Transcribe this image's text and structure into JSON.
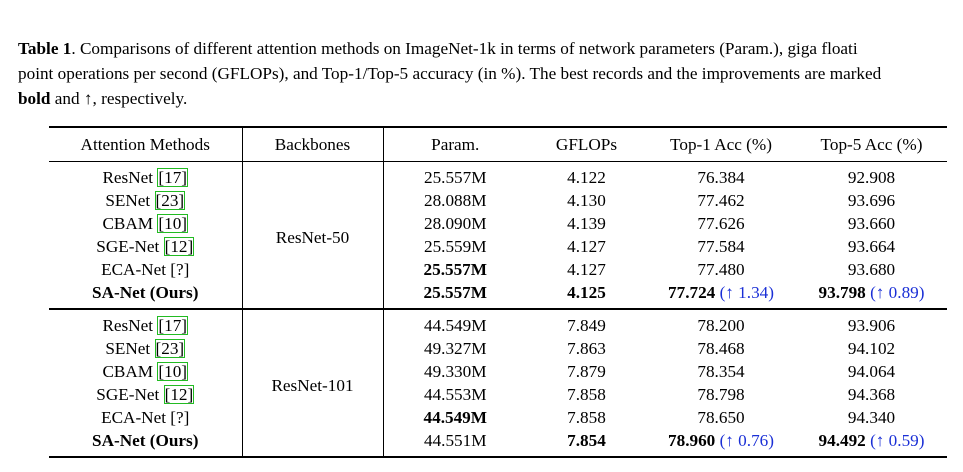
{
  "caption": {
    "label": "Table 1",
    "line1": ". Comparisons of different attention methods on ImageNet-1k in terms of network parameters (Param.), giga floati",
    "line2": "point operations per second (GFLOPs), and Top-1/Top-5 accuracy (in %). The best records and the improvements are marked",
    "line3_bold": "bold",
    "line3_rest": " and ↑, respectively."
  },
  "table": {
    "headers": [
      "Attention Methods",
      "Backbones",
      "Param.",
      "GFLOPs",
      "Top-1 Acc (%)",
      "Top-5 Acc (%)"
    ],
    "groups": [
      {
        "backbone": "ResNet-50",
        "rows": [
          {
            "method": "ResNet",
            "ref": "17",
            "param": "25.557M",
            "gflops": "4.122",
            "top1": "76.384",
            "top5": "92.908"
          },
          {
            "method": "SENet",
            "ref": "23",
            "param": "28.088M",
            "gflops": "4.130",
            "top1": "77.462",
            "top5": "93.696"
          },
          {
            "method": "CBAM",
            "ref": "10",
            "param": "28.090M",
            "gflops": "4.139",
            "top1": "77.626",
            "top5": "93.660"
          },
          {
            "method": "SGE-Net",
            "ref": "12",
            "param": "25.559M",
            "gflops": "4.127",
            "top1": "77.584",
            "top5": "93.664"
          },
          {
            "method": "ECA-Net",
            "ref": "?",
            "param": "25.557M",
            "gflops": "4.127",
            "top1": "77.480",
            "top5": "93.680"
          },
          {
            "method": "SA-Net (Ours)",
            "param": "25.557M",
            "gflops": "4.125",
            "top1": "77.724",
            "top1_imp": "(↑ 1.34)",
            "top5": "93.798",
            "top5_imp": "(↑ 0.89)"
          }
        ]
      },
      {
        "backbone": "ResNet-101",
        "rows": [
          {
            "method": "ResNet",
            "ref": "17",
            "param": "44.549M",
            "gflops": "7.849",
            "top1": "78.200",
            "top5": "93.906"
          },
          {
            "method": "SENet",
            "ref": "23",
            "param": "49.327M",
            "gflops": "7.863",
            "top1": "78.468",
            "top5": "94.102"
          },
          {
            "method": "CBAM",
            "ref": "10",
            "param": "49.330M",
            "gflops": "7.879",
            "top1": "78.354",
            "top5": "94.064"
          },
          {
            "method": "SGE-Net",
            "ref": "12",
            "param": "44.553M",
            "gflops": "7.858",
            "top1": "78.798",
            "top5": "94.368"
          },
          {
            "method": "ECA-Net",
            "ref": "?",
            "param": "44.549M",
            "gflops": "7.858",
            "top1": "78.650",
            "top5": "94.340"
          },
          {
            "method": "SA-Net (Ours)",
            "param": "44.551M",
            "gflops": "7.854",
            "top1": "78.960",
            "top1_imp": "(↑ 0.76)",
            "top5": "94.492",
            "top5_imp": "(↑ 0.59)"
          }
        ]
      }
    ]
  }
}
